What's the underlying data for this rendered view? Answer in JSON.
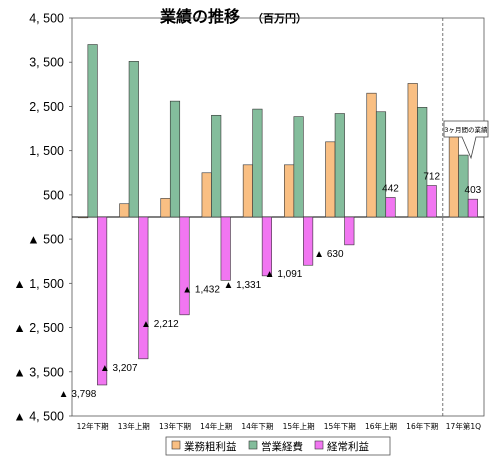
{
  "chart_data": {
    "type": "bar",
    "title": "業績の推移",
    "subtitle": "（百万円）",
    "categories": [
      "12年下期",
      "13年上期",
      "13年下期",
      "14年上期",
      "14年下期",
      "15年上期",
      "15年下期",
      "16年上期",
      "16年下期",
      "17年第1Q"
    ],
    "series": [
      {
        "name": "業務粗利益",
        "color": "#f9bf83",
        "values": [
          0,
          300,
          420,
          1000,
          1180,
          1180,
          1700,
          2800,
          3020,
          1820
        ]
      },
      {
        "name": "営業経費",
        "color": "#84bd9c",
        "values": [
          3900,
          3520,
          2620,
          2300,
          2440,
          2270,
          2340,
          2380,
          2480,
          1400
        ]
      },
      {
        "name": "経常利益",
        "color": "#f176f1",
        "values": [
          -3798,
          -3207,
          -2212,
          -1432,
          -1331,
          -1091,
          -630,
          442,
          712,
          403
        ]
      }
    ],
    "data_labels": [
      "▲ 3,798",
      "▲ 3,207",
      "▲ 2,212",
      "▲ 1,432",
      "▲ 1,331",
      "▲ 1,091",
      "▲ 630",
      "442",
      "712",
      "403"
    ],
    "y_tick_values": [
      4500,
      3500,
      2500,
      1500,
      500,
      -500,
      -1500,
      -2500,
      -3500,
      -4500
    ],
    "y_tick_labels": [
      "4, 500",
      "3, 500",
      "2, 500",
      "1, 500",
      "500",
      "▲ 500",
      "▲ 1, 500",
      "▲ 2, 500",
      "▲ 3, 500",
      "▲ 4, 500"
    ],
    "ylim": [
      -4500,
      4500
    ],
    "annotation": "3ヶ月間の業績",
    "legend_position": "bottom",
    "grid": false
  }
}
